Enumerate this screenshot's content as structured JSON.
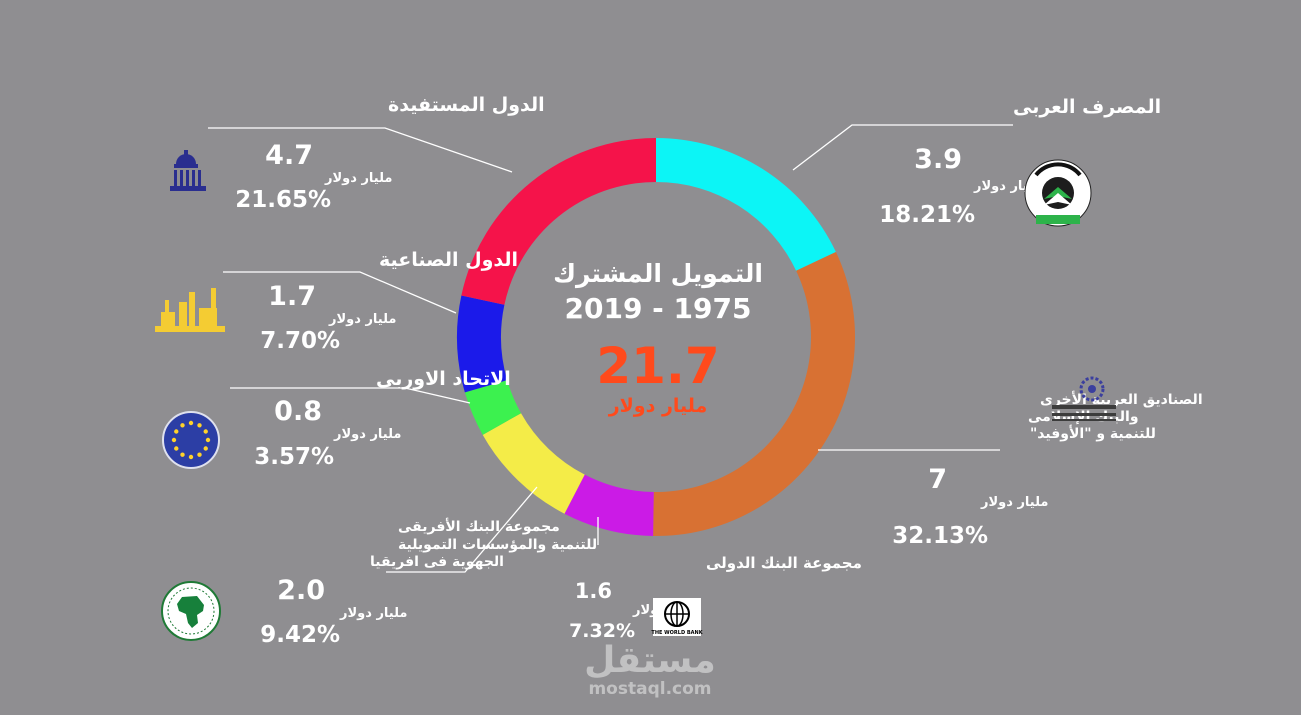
{
  "chart_data": {
    "type": "pie",
    "variant": "donut",
    "title": "التمويل المشترك",
    "subtitle": "2019 - 1975",
    "total_value": "21.7",
    "total_unit": "مليار دولار",
    "total_color": "#ff4a1c",
    "slices": [
      {
        "label": "المصرف العربى",
        "value": 3.9,
        "value_text": "3.9",
        "unit": "مليار دولار",
        "percent": "18.21%",
        "color": "#0cf5f6",
        "logo": "badea-logo"
      },
      {
        "label_lines": [
          "الصناديق العربية الأخرى",
          "والبنك  الإسلامى",
          "للتنمية و \"الأوفيد\""
        ],
        "value": 7.0,
        "value_text": "7",
        "unit": "مليار دولار",
        "percent": "32.13%",
        "color": "#d87133",
        "logo": "arab-funds-logo"
      },
      {
        "label": "مجموعة البنك الدولى",
        "value": 1.6,
        "value_text": "1.6",
        "unit": "مليار دولار",
        "percent": "7.32%",
        "color": "#cb1be6",
        "logo": "world-bank-logo",
        "logo_text": "THE WORLD BANK"
      },
      {
        "label_lines": [
          "مجموعة البنك الأفريقى",
          "للتنمية والمؤسسات التمويلية",
          "الجهوية فى افريقيا"
        ],
        "value": 2.0,
        "value_text": "2.0",
        "unit": "مليار دولار",
        "percent": "9.42%",
        "color": "#f4ec48",
        "logo": "african-bank-logo"
      },
      {
        "label": "الاتحاد الاوربى",
        "value": 0.8,
        "value_text": "0.8",
        "unit": "مليار دولار",
        "percent": "3.57%",
        "color": "#3cf14f",
        "logo": "eu-flag-icon"
      },
      {
        "label": "الدول الصناعية",
        "value": 1.7,
        "value_text": "1.7",
        "unit": "مليار دولار",
        "percent": "7.70%",
        "color": "#1b1aea",
        "logo": "factory-icon"
      },
      {
        "label": "الدول المستفيدة",
        "value": 4.7,
        "value_text": "4.7",
        "unit": "مليار دولار",
        "percent": "21.65%",
        "color": "#f5134a",
        "logo": "government-building-icon"
      }
    ]
  },
  "watermark": {
    "name": "مستقل",
    "url": "mostaql.com"
  }
}
